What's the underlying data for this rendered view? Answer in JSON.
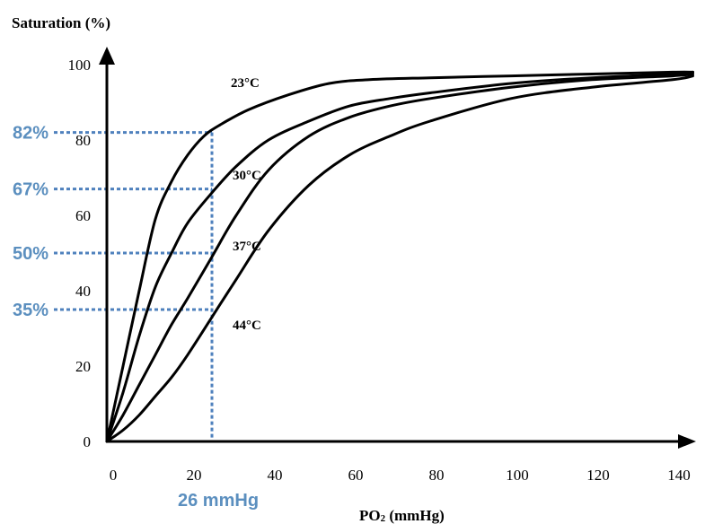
{
  "chart_data": {
    "type": "line",
    "ylabel": "Saturation (%)",
    "xlabel_main": "PO",
    "xlabel_sub": "2",
    "xlabel_unit": " (mmHg)",
    "xlim": [
      0,
      145
    ],
    "ylim": [
      0,
      100
    ],
    "x_ticks": [
      "0",
      "20",
      "40",
      "60",
      "80",
      "100",
      "120",
      "140"
    ],
    "y_ticks": [
      "0",
      "20",
      "40",
      "60",
      "80",
      "100"
    ],
    "series": [
      {
        "name": "23°C",
        "x": [
          0,
          4,
          8,
          12,
          16,
          20,
          24,
          28,
          35,
          45,
          55,
          65,
          80,
          100,
          120,
          140,
          145
        ],
        "y": [
          0,
          20,
          40,
          59,
          69,
          76,
          81,
          84,
          88,
          92,
          95,
          96,
          96.5,
          97,
          97.5,
          98,
          98
        ]
      },
      {
        "name": "30°C",
        "x": [
          0,
          4,
          8,
          12,
          16,
          20,
          26,
          32,
          40,
          50,
          60,
          70,
          80,
          100,
          120,
          140,
          145
        ],
        "y": [
          0,
          13,
          28,
          41,
          50,
          58,
          66,
          73,
          80,
          85,
          89,
          91,
          92.5,
          95,
          96.5,
          97.5,
          98
        ]
      },
      {
        "name": "37°C",
        "x": [
          0,
          4,
          8,
          12,
          16,
          20,
          26,
          32,
          40,
          50,
          60,
          70,
          80,
          100,
          120,
          140,
          145
        ],
        "y": [
          0,
          7,
          15,
          23,
          31,
          38,
          49,
          60,
          72,
          81,
          86,
          89,
          91,
          94,
          96,
          97,
          97.5
        ]
      },
      {
        "name": "44°C",
        "x": [
          0,
          4,
          8,
          12,
          16,
          20,
          26,
          32,
          40,
          50,
          60,
          70,
          80,
          100,
          120,
          140,
          145
        ],
        "y": [
          0,
          3,
          7,
          12,
          17,
          23,
          33,
          43,
          56,
          68,
          76,
          81,
          85,
          91,
          94,
          96,
          97
        ]
      }
    ],
    "annotations": {
      "x_marker": {
        "value": 26,
        "label": "26 mmHg"
      },
      "y_markers": [
        {
          "value": 82,
          "label": "82%"
        },
        {
          "value": 67,
          "label": "67%"
        },
        {
          "value": 50,
          "label": "50%"
        },
        {
          "value": 35,
          "label": "35%"
        }
      ],
      "color": "#4f81bd",
      "label_color": "#5b8fbf"
    }
  }
}
